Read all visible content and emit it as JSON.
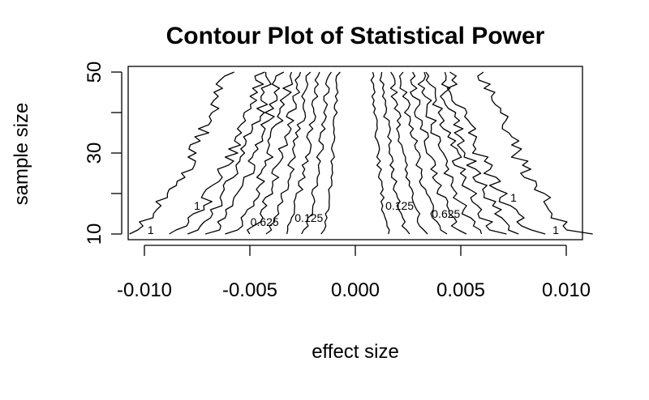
{
  "chart_data": {
    "type": "contour",
    "title": "Contour Plot of Statistical Power",
    "xlabel": "effect size",
    "ylabel": "sample size",
    "xlim": [
      -0.01,
      0.01
    ],
    "ylim": [
      10,
      50
    ],
    "x_ticks": [
      -0.01,
      -0.005,
      0.0,
      0.005,
      0.01
    ],
    "x_tick_labels": [
      "-0.010",
      "-0.005",
      "0.000",
      "0.005",
      "0.010"
    ],
    "y_ticks": [
      10,
      20,
      30,
      40,
      50
    ],
    "y_tick_labels": [
      "10",
      "",
      "30",
      "",
      "50"
    ],
    "levels": [
      0.125,
      0.25,
      0.375,
      0.5,
      0.625,
      0.75,
      0.875,
      1
    ],
    "contour_labels": [
      {
        "text": "1",
        "x": -0.0097,
        "y": 10
      },
      {
        "text": "1",
        "x": -0.0075,
        "y": 16
      },
      {
        "text": "0.625",
        "x": -0.0043,
        "y": 12
      },
      {
        "text": "0.125",
        "x": -0.0022,
        "y": 13
      },
      {
        "text": "0.125",
        "x": 0.0021,
        "y": 16
      },
      {
        "text": "0.625",
        "x": 0.0043,
        "y": 14
      },
      {
        "text": "1",
        "x": 0.0075,
        "y": 18
      },
      {
        "text": "1",
        "x": 0.0095,
        "y": 10
      }
    ]
  }
}
